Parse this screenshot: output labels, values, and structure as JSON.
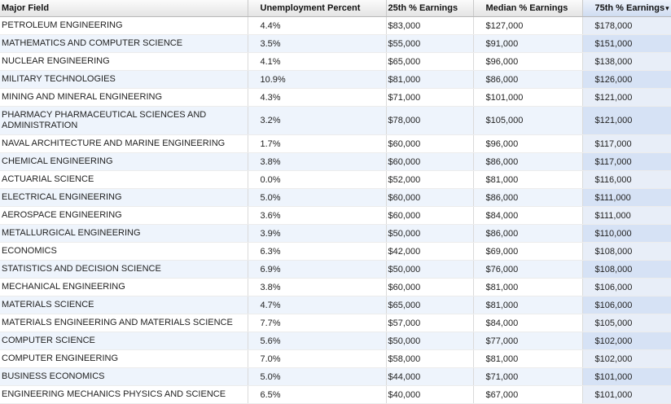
{
  "headers": [
    "Major Field",
    "Unemployment Percent",
    "25th % Earnings",
    "Median % Earnings",
    "75th % Earnings"
  ],
  "sort_arrow": "▾",
  "colors": {
    "row_alt": "#eef4fc",
    "sorted_column": "#d6e2f5"
  },
  "rows": [
    [
      "PETROLEUM ENGINEERING",
      "4.4%",
      "$83,000",
      "$127,000",
      "$178,000"
    ],
    [
      "MATHEMATICS AND COMPUTER SCIENCE",
      "3.5%",
      "$55,000",
      "$91,000",
      "$151,000"
    ],
    [
      "NUCLEAR ENGINEERING",
      "4.1%",
      "$65,000",
      "$96,000",
      "$138,000"
    ],
    [
      "MILITARY TECHNOLOGIES",
      "10.9%",
      "$81,000",
      "$86,000",
      "$126,000"
    ],
    [
      "MINING AND MINERAL ENGINEERING",
      "4.3%",
      "$71,000",
      "$101,000",
      "$121,000"
    ],
    [
      "PHARMACY PHARMACEUTICAL SCIENCES AND ADMINISTRATION",
      "3.2%",
      "$78,000",
      "$105,000",
      "$121,000"
    ],
    [
      "NAVAL ARCHITECTURE AND MARINE ENGINEERING",
      "1.7%",
      "$60,000",
      "$96,000",
      "$117,000"
    ],
    [
      "CHEMICAL ENGINEERING",
      "3.8%",
      "$60,000",
      "$86,000",
      "$117,000"
    ],
    [
      "ACTUARIAL SCIENCE",
      "0.0%",
      "$52,000",
      "$81,000",
      "$116,000"
    ],
    [
      "ELECTRICAL ENGINEERING",
      "5.0%",
      "$60,000",
      "$86,000",
      "$111,000"
    ],
    [
      "AEROSPACE ENGINEERING",
      "3.6%",
      "$60,000",
      "$84,000",
      "$111,000"
    ],
    [
      "METALLURGICAL ENGINEERING",
      "3.9%",
      "$50,000",
      "$86,000",
      "$110,000"
    ],
    [
      "ECONOMICS",
      "6.3%",
      "$42,000",
      "$69,000",
      "$108,000"
    ],
    [
      "STATISTICS AND DECISION SCIENCE",
      "6.9%",
      "$50,000",
      "$76,000",
      "$108,000"
    ],
    [
      "MECHANICAL ENGINEERING",
      "3.8%",
      "$60,000",
      "$81,000",
      "$106,000"
    ],
    [
      "MATERIALS SCIENCE",
      "4.7%",
      "$65,000",
      "$81,000",
      "$106,000"
    ],
    [
      "MATERIALS ENGINEERING AND MATERIALS SCIENCE",
      "7.7%",
      "$57,000",
      "$84,000",
      "$105,000"
    ],
    [
      "COMPUTER SCIENCE",
      "5.6%",
      "$50,000",
      "$77,000",
      "$102,000"
    ],
    [
      "COMPUTER ENGINEERING",
      "7.0%",
      "$58,000",
      "$81,000",
      "$102,000"
    ],
    [
      "BUSINESS ECONOMICS",
      "5.0%",
      "$44,000",
      "$71,000",
      "$101,000"
    ],
    [
      "ENGINEERING MECHANICS PHYSICS AND SCIENCE",
      "6.5%",
      "$40,000",
      "$67,000",
      "$101,000"
    ]
  ]
}
